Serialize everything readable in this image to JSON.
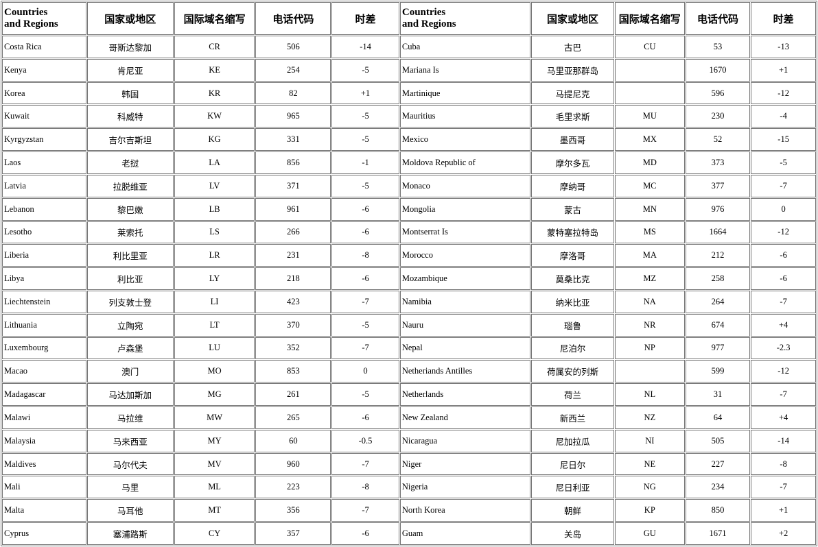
{
  "table": {
    "headers": [
      "Countries\nand Regions",
      "国家或地区",
      "国际域名缩写",
      "电话代码",
      "时差",
      "Countries\nand Regions",
      "国家或地区",
      "国际域名缩写",
      "电话代码",
      "时差"
    ],
    "rows": [
      [
        "Costa Rica",
        "哥斯达黎加",
        "CR",
        "506",
        "-14",
        "Cuba",
        "古巴",
        "CU",
        "53",
        "-13"
      ],
      [
        "Kenya",
        "肯尼亚",
        "KE",
        "254",
        "-5",
        "Mariana Is",
        "马里亚那群岛",
        null,
        "1670",
        "+1"
      ],
      [
        "Korea",
        "韩国",
        "KR",
        "82",
        "+1",
        "Martinique",
        "马提尼克",
        null,
        "596",
        "-12"
      ],
      [
        "Kuwait",
        "科威特",
        "KW",
        "965",
        "-5",
        "Mauritius",
        "毛里求斯",
        "MU",
        "230",
        "-4"
      ],
      [
        "Kyrgyzstan",
        "吉尔吉斯坦",
        "KG",
        "331",
        "-5",
        "Mexico",
        "墨西哥",
        "MX",
        "52",
        "-15"
      ],
      [
        "Laos",
        "老挝",
        "LA",
        "856",
        "-1",
        "Moldova Republic of",
        "摩尔多瓦",
        "MD",
        "373",
        "-5"
      ],
      [
        "Latvia",
        "拉脱维亚",
        "LV",
        "371",
        "-5",
        "Monaco",
        "摩纳哥",
        "MC",
        "377",
        "-7"
      ],
      [
        "Lebanon",
        "黎巴嫩",
        "LB",
        "961",
        "-6",
        "Mongolia",
        "蒙古",
        "MN",
        "976",
        "0"
      ],
      [
        "Lesotho",
        "莱索托",
        "LS",
        "266",
        "-6",
        "Montserrat Is",
        "蒙特塞拉特岛",
        "MS",
        "1664",
        "-12"
      ],
      [
        "Liberia",
        "利比里亚",
        "LR",
        "231",
        "-8",
        "Morocco",
        "摩洛哥",
        "MA",
        "212",
        "-6"
      ],
      [
        "Libya",
        "利比亚",
        "LY",
        "218",
        "-6",
        "Mozambique",
        "莫桑比克",
        "MZ",
        "258",
        "-6"
      ],
      [
        "Liechtenstein",
        "列支敦士登",
        "LI",
        "423",
        "-7",
        "Namibia",
        "纳米比亚",
        "NA",
        "264",
        "-7"
      ],
      [
        "Lithuania",
        "立陶宛",
        "LT",
        "370",
        "-5",
        "Nauru",
        "瑙鲁",
        "NR",
        "674",
        "+4"
      ],
      [
        "Luxembourg",
        "卢森堡",
        "LU",
        "352",
        "-7",
        "Nepal",
        "尼泊尔",
        "NP",
        "977",
        "-2.3"
      ],
      [
        "Macao",
        "澳门",
        "MO",
        "853",
        "0",
        "Netheriands Antilles",
        "荷属安的列斯",
        null,
        "599",
        "-12"
      ],
      [
        "Madagascar",
        "马达加斯加",
        "MG",
        "261",
        "-5",
        "Netherlands",
        "荷兰",
        "NL",
        "31",
        "-7"
      ],
      [
        "Malawi",
        "马拉维",
        "MW",
        "265",
        "-6",
        "New Zealand",
        "新西兰",
        "NZ",
        "64",
        "+4"
      ],
      [
        "Malaysia",
        "马来西亚",
        "MY",
        "60",
        "-0.5",
        "Nicaragua",
        "尼加拉瓜",
        "NI",
        "505",
        "-14"
      ],
      [
        "Maldives",
        "马尔代夫",
        "MV",
        "960",
        "-7",
        "Niger",
        "尼日尔",
        "NE",
        "227",
        "-8"
      ],
      [
        "Mali",
        "马里",
        "ML",
        "223",
        "-8",
        "Nigeria",
        "尼日利亚",
        "NG",
        "234",
        "-7"
      ],
      [
        "Malta",
        "马耳他",
        "MT",
        "356",
        "-7",
        "North Korea",
        "朝鲜",
        "KP",
        "850",
        "+1"
      ],
      [
        "Cyprus",
        "塞浦路斯",
        "CY",
        "357",
        "-6",
        "Guam",
        "关岛",
        "GU",
        "1671",
        "+2"
      ]
    ]
  }
}
